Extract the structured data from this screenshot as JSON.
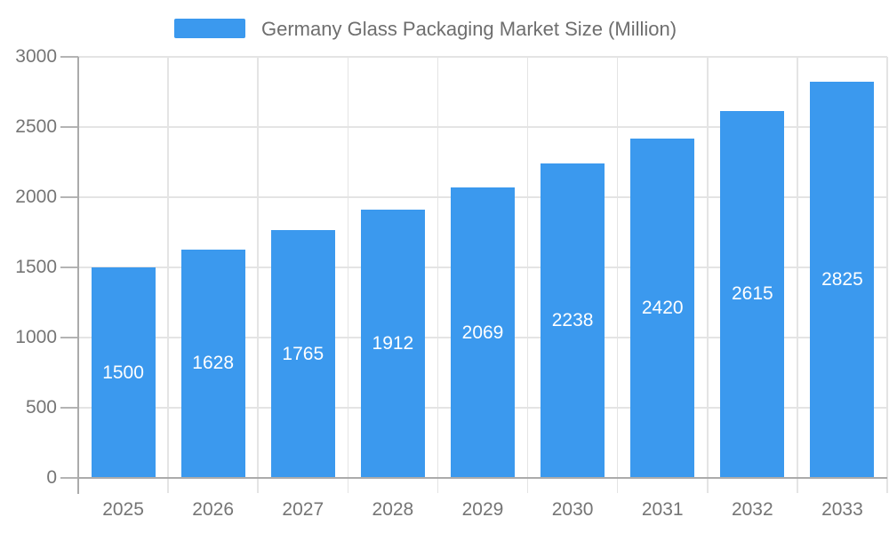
{
  "chart_data": {
    "type": "bar",
    "title": "Germany Glass Packaging Market Size (Million)",
    "categories": [
      "2025",
      "2026",
      "2027",
      "2028",
      "2029",
      "2030",
      "2031",
      "2032",
      "2033"
    ],
    "values": [
      1500,
      1628,
      1765,
      1912,
      2069,
      2238,
      2420,
      2615,
      2825
    ],
    "value_labels": [
      "1500",
      "1628",
      "1765",
      "1912",
      "2069",
      "2238",
      "2420",
      "2615",
      "2825"
    ],
    "ytick_labels": [
      "0",
      "500",
      "1000",
      "1500",
      "2000",
      "2500",
      "3000"
    ],
    "yticks": [
      0,
      500,
      1000,
      1500,
      2000,
      2500,
      3000
    ],
    "ylim": [
      0,
      3000
    ],
    "xlabel": "",
    "ylabel": "",
    "grid": true,
    "legend_position": "top",
    "legend_entries": [
      "Germany Glass Packaging Market Size (Million)"
    ],
    "colors": {
      "bar": "#3b99ee",
      "value_label": "#ffffff",
      "grid": "#e4e4e4",
      "axis": "#ababab",
      "tick": "#b4b4b4",
      "tick_label": "#757575",
      "legend_label": "#6e6e6e",
      "background": "#ffffff"
    }
  }
}
